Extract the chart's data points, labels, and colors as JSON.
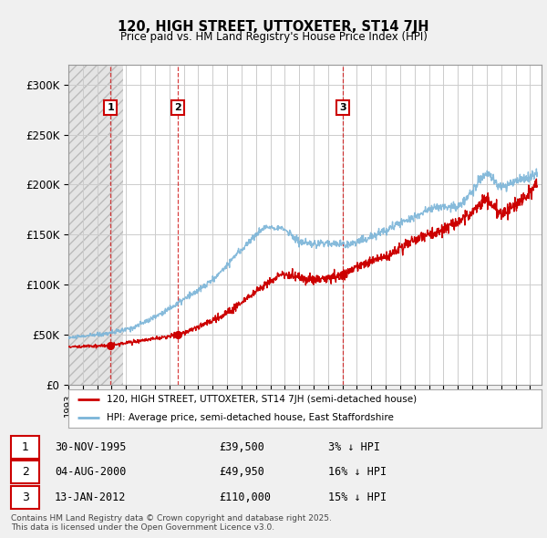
{
  "title": "120, HIGH STREET, UTTOXETER, ST14 7JH",
  "subtitle": "Price paid vs. HM Land Registry's House Price Index (HPI)",
  "ylim": [
    0,
    320000
  ],
  "yticks": [
    0,
    50000,
    100000,
    150000,
    200000,
    250000,
    300000
  ],
  "ytick_labels": [
    "£0",
    "£50K",
    "£100K",
    "£150K",
    "£200K",
    "£250K",
    "£300K"
  ],
  "legend_line1": "120, HIGH STREET, UTTOXETER, ST14 7JH (semi-detached house)",
  "legend_line2": "HPI: Average price, semi-detached house, East Staffordshire",
  "transactions": [
    {
      "num": 1,
      "date": "30-NOV-1995",
      "price": 39500,
      "pct": "3% ↓ HPI",
      "year": 1995.92
    },
    {
      "num": 2,
      "date": "04-AUG-2000",
      "price": 49950,
      "pct": "16% ↓ HPI",
      "year": 2000.59
    },
    {
      "num": 3,
      "date": "13-JAN-2012",
      "price": 110000,
      "pct": "15% ↓ HPI",
      "year": 2012.04
    }
  ],
  "footer": "Contains HM Land Registry data © Crown copyright and database right 2025.\nThis data is licensed under the Open Government Licence v3.0.",
  "hpi_color": "#7ab4d8",
  "price_color": "#cc0000",
  "bg_color": "#f0f0f0",
  "plot_bg": "#ffffff",
  "grid_color": "#cccccc",
  "xmin": 1993,
  "xmax": 2025.8,
  "hpi_knots_x": [
    1993,
    1995,
    1997,
    1999,
    2001,
    2003,
    2005,
    2007,
    2008,
    2009,
    2010,
    2011,
    2012,
    2013,
    2014,
    2015,
    2016,
    2017,
    2018,
    2019,
    2020,
    2021,
    2022,
    2023,
    2024,
    2025.5
  ],
  "hpi_knots_y": [
    47000,
    50000,
    55000,
    68000,
    85000,
    105000,
    135000,
    158000,
    155000,
    143000,
    140000,
    142000,
    140000,
    143000,
    148000,
    155000,
    162000,
    168000,
    175000,
    178000,
    178000,
    195000,
    210000,
    198000,
    203000,
    210000
  ]
}
